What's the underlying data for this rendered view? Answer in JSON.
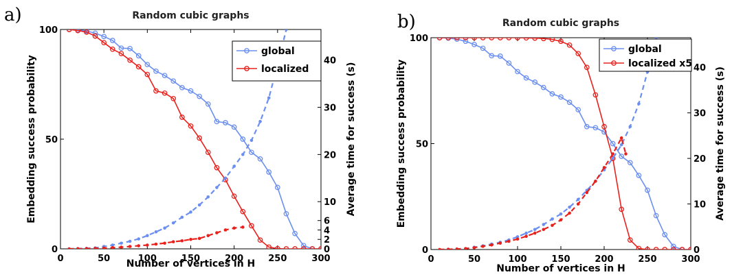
{
  "chart_data": [
    {
      "type": "line",
      "panel_label": "a)",
      "title": "Random cubic graphs",
      "xlabel": "Number of vertices in H",
      "ylabel": "Embedding success probability",
      "y2label": "Average time for success (s)",
      "xlim": [
        0,
        300
      ],
      "ylim": [
        0,
        100
      ],
      "y2lim": [
        0,
        46.5
      ],
      "xticks": [
        0,
        50,
        100,
        150,
        200,
        250,
        300
      ],
      "yticks": [
        0,
        50,
        100
      ],
      "y2ticks": [
        0,
        2,
        4,
        6,
        10,
        20,
        30,
        40
      ],
      "legend_position": "top-right",
      "series": [
        {
          "name": "global",
          "axis": "left",
          "style": "solid",
          "color": "#6b8ff0",
          "marker": "circle",
          "x": [
            10,
            20,
            30,
            40,
            50,
            60,
            70,
            80,
            90,
            100,
            110,
            120,
            130,
            140,
            150,
            160,
            170,
            180,
            190,
            200,
            210,
            220,
            230,
            240,
            250,
            260,
            270,
            280,
            290,
            300
          ],
          "values": [
            100,
            99.8,
            99.3,
            98.3,
            96.8,
            95,
            91.5,
            91.3,
            88,
            84,
            81,
            79,
            76.5,
            73.5,
            72,
            69.5,
            66,
            58,
            57.5,
            55.5,
            50,
            44,
            41,
            35,
            28,
            16,
            7,
            1.5,
            0,
            0
          ]
        },
        {
          "name": "localized",
          "axis": "left",
          "style": "solid",
          "color": "#e8211c",
          "marker": "circle",
          "x": [
            10,
            20,
            30,
            40,
            50,
            60,
            70,
            80,
            90,
            100,
            110,
            120,
            130,
            140,
            150,
            160,
            170,
            180,
            190,
            200,
            210,
            220,
            230,
            240,
            250,
            260,
            270,
            280,
            290,
            300
          ],
          "values": [
            100,
            99.5,
            98.8,
            97,
            94,
            91,
            89,
            86,
            83,
            79.5,
            72,
            71,
            68.5,
            60,
            56,
            50.5,
            44,
            37,
            31.5,
            24,
            17,
            10.5,
            4,
            0.8,
            0.1,
            0,
            0,
            0,
            0,
            0
          ]
        },
        {
          "name": "",
          "axis": "right",
          "style": "dashed",
          "color": "#6b8ff0",
          "marker": "dot",
          "x": [
            10,
            20,
            30,
            40,
            50,
            60,
            70,
            80,
            90,
            100,
            110,
            120,
            130,
            140,
            150,
            160,
            170,
            180,
            190,
            200,
            210,
            220,
            230,
            240,
            250,
            260
          ],
          "values": [
            0,
            0.05,
            0.1,
            0.2,
            0.5,
            0.8,
            1.2,
            1.6,
            2.1,
            2.8,
            3.6,
            4.4,
            5.5,
            6.7,
            7.8,
            9.3,
            11,
            13,
            15,
            17.5,
            20,
            23,
            27,
            32,
            39,
            46.5
          ]
        },
        {
          "name": "",
          "axis": "right",
          "style": "dashed",
          "color": "#e8211c",
          "marker": "dot",
          "x": [
            10,
            20,
            30,
            40,
            50,
            60,
            70,
            80,
            90,
            100,
            110,
            120,
            130,
            140,
            150,
            160,
            170,
            180,
            190,
            200,
            210
          ],
          "values": [
            0,
            0.02,
            0.05,
            0.1,
            0.15,
            0.25,
            0.35,
            0.5,
            0.65,
            0.8,
            1.0,
            1.2,
            1.5,
            1.7,
            2.0,
            2.2,
            2.8,
            3.4,
            4.0,
            4.4,
            4.6
          ]
        }
      ]
    },
    {
      "type": "line",
      "panel_label": "b)",
      "title": "Random cubic graphs",
      "xlabel": "Number of vertices in H",
      "ylabel": "Embedding success probability",
      "y2label": "Average time for success (s)",
      "xlim": [
        0,
        300
      ],
      "ylim": [
        0,
        100
      ],
      "y2lim": [
        0,
        46.5
      ],
      "xticks": [
        0,
        50,
        100,
        150,
        200,
        250,
        300
      ],
      "yticks": [
        0,
        50,
        100
      ],
      "y2ticks": [
        0,
        10,
        20,
        30,
        40
      ],
      "legend_position": "top-right",
      "series": [
        {
          "name": "global",
          "axis": "left",
          "style": "solid",
          "color": "#6b8ff0",
          "marker": "circle",
          "x": [
            10,
            20,
            30,
            40,
            50,
            60,
            70,
            80,
            90,
            100,
            110,
            120,
            130,
            140,
            150,
            160,
            170,
            180,
            190,
            200,
            210,
            220,
            230,
            240,
            250,
            260,
            270,
            280,
            290,
            300
          ],
          "values": [
            100,
            99.8,
            99.3,
            98.3,
            96.8,
            95,
            91.5,
            91.3,
            88,
            84,
            81,
            79,
            76.5,
            73.5,
            72,
            69.5,
            66,
            58,
            57.5,
            55.5,
            50,
            44,
            41,
            35,
            28,
            16,
            7,
            1.5,
            0,
            0
          ]
        },
        {
          "name": "localized x5",
          "axis": "left",
          "style": "solid",
          "color": "#e8211c",
          "marker": "circle",
          "x": [
            10,
            20,
            30,
            40,
            50,
            60,
            70,
            80,
            90,
            100,
            110,
            120,
            130,
            140,
            150,
            160,
            170,
            180,
            190,
            200,
            210,
            220,
            230,
            240,
            250,
            260,
            270,
            280,
            290,
            300
          ],
          "values": [
            100,
            100,
            100,
            100,
            100,
            100,
            100,
            100,
            100,
            100,
            99.9,
            99.8,
            99.6,
            99.2,
            98.3,
            96.5,
            92.5,
            86,
            73,
            58,
            43,
            19,
            4.5,
            0.5,
            0,
            0,
            0,
            0,
            0,
            0
          ]
        },
        {
          "name": "",
          "axis": "right",
          "style": "dashed",
          "color": "#6b8ff0",
          "marker": "dot",
          "x": [
            10,
            20,
            30,
            40,
            50,
            60,
            70,
            80,
            90,
            100,
            110,
            120,
            130,
            140,
            150,
            160,
            170,
            180,
            190,
            200,
            210,
            220,
            230,
            240,
            250,
            260
          ],
          "values": [
            0,
            0.05,
            0.1,
            0.2,
            0.5,
            0.8,
            1.2,
            1.6,
            2.1,
            2.8,
            3.6,
            4.4,
            5.5,
            6.7,
            7.8,
            9.3,
            11,
            13,
            15,
            17.5,
            20,
            23,
            27,
            32,
            39,
            46.5
          ]
        },
        {
          "name": "",
          "axis": "right",
          "style": "dashed",
          "color": "#e8211c",
          "marker": "dot",
          "x": [
            10,
            20,
            30,
            40,
            50,
            60,
            70,
            80,
            90,
            100,
            110,
            120,
            130,
            140,
            150,
            160,
            170,
            180,
            190,
            200,
            210,
            220,
            225
          ],
          "values": [
            0,
            0.05,
            0.1,
            0.2,
            0.4,
            0.7,
            1.0,
            1.4,
            1.8,
            2.3,
            2.9,
            3.6,
            4.4,
            5.3,
            6.5,
            8,
            10,
            12.5,
            15,
            18,
            21,
            24.5,
            21
          ]
        }
      ]
    }
  ]
}
